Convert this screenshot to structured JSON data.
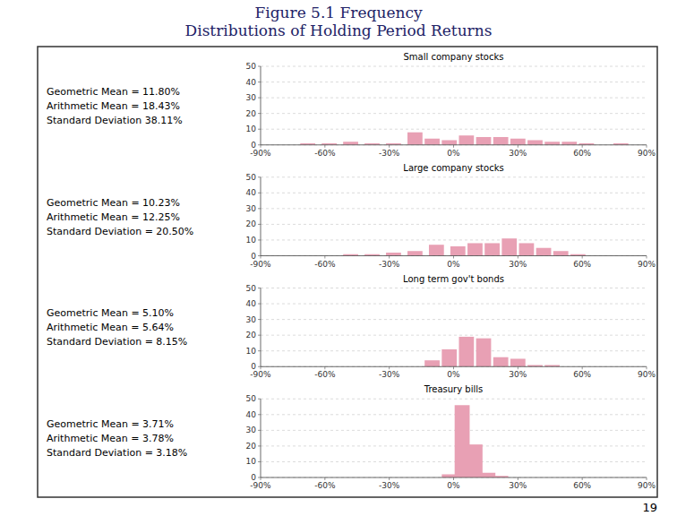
{
  "title": [
    "Figure 5.1 Frequency",
    "Distributions of Holding Period Returns"
  ],
  "annotations": [
    "19"
  ],
  "chart_data": [
    {
      "type": "bar",
      "title": "Small company stocks",
      "annotations": [
        "Geometric Mean = 11.80%",
        "Arithmetic Mean = 18.43%",
        "Standard Deviation    38.11%"
      ],
      "x": [
        -68,
        -58,
        -48,
        -38,
        -28,
        -18,
        -10,
        -2,
        6,
        14,
        22,
        30,
        38,
        46,
        54,
        62,
        78
      ],
      "values": [
        1,
        1,
        2,
        1,
        1,
        8,
        4,
        3,
        6,
        5,
        5,
        4,
        3,
        2,
        2,
        1,
        1
      ],
      "color": "#e8a0b4",
      "xlim": [
        -90,
        90
      ],
      "xticks": [
        {
          "value": -90,
          "label": "-90%"
        },
        {
          "value": -60,
          "label": "-60%"
        },
        {
          "value": -30,
          "label": "-30%"
        },
        {
          "value": 0,
          "label": "0%"
        },
        {
          "value": 30,
          "label": "30%"
        },
        {
          "value": 60,
          "label": "60%"
        },
        {
          "value": 90,
          "label": "90%"
        }
      ],
      "ylim": [
        0,
        50
      ],
      "yticks": [
        0,
        10,
        20,
        30,
        40,
        50
      ],
      "grid": true
    },
    {
      "type": "bar",
      "title": "Large company stocks",
      "annotations": [
        "Geometric Mean = 10.23%",
        "Arithmetic Mean = 12.25%",
        "Standard Deviation = 20.50%"
      ],
      "x": [
        -48,
        -38,
        -28,
        -18,
        -8,
        2,
        10,
        18,
        26,
        34,
        42,
        50,
        58
      ],
      "values": [
        1,
        1,
        2,
        3,
        7,
        6,
        8,
        8,
        11,
        8,
        5,
        3,
        1
      ],
      "color": "#e8a0b4",
      "xlim": [
        -90,
        90
      ],
      "xticks": [
        {
          "value": -90,
          "label": "-90%"
        },
        {
          "value": -60,
          "label": "-60%"
        },
        {
          "value": -30,
          "label": "-30%"
        },
        {
          "value": 0,
          "label": "0%"
        },
        {
          "value": 30,
          "label": "30%"
        },
        {
          "value": 60,
          "label": "60%"
        },
        {
          "value": 90,
          "label": "90%"
        }
      ],
      "ylim": [
        0,
        50
      ],
      "yticks": [
        0,
        10,
        20,
        30,
        40,
        50
      ],
      "grid": true
    },
    {
      "type": "bar",
      "title": "Long term gov't bonds",
      "annotations": [
        "Geometric Mean = 5.10%",
        "Arithmetic Mean = 5.64%",
        "Standard Deviation = 8.15%"
      ],
      "x": [
        -10,
        -2,
        6,
        14,
        22,
        30,
        38,
        46
      ],
      "values": [
        4,
        11,
        19,
        18,
        6,
        5,
        1,
        1
      ],
      "color": "#e8a0b4",
      "xlim": [
        -90,
        90
      ],
      "xticks": [
        {
          "value": -90,
          "label": "-90%"
        },
        {
          "value": -60,
          "label": "-60%"
        },
        {
          "value": -30,
          "label": "-30%"
        },
        {
          "value": 0,
          "label": "0%"
        },
        {
          "value": 30,
          "label": "30%"
        },
        {
          "value": 60,
          "label": "60%"
        },
        {
          "value": 90,
          "label": "90%"
        }
      ],
      "ylim": [
        0,
        50
      ],
      "yticks": [
        0,
        10,
        20,
        30,
        40,
        50
      ],
      "grid": true
    },
    {
      "type": "bar",
      "title": "Treasury bills",
      "annotations": [
        "Geometric Mean = 3.71%",
        "Arithmetic Mean = 3.78%",
        "Standard Deviation = 3.18%"
      ],
      "x": [
        -2,
        4,
        10,
        16,
        22
      ],
      "values": [
        2,
        46,
        21,
        3,
        1
      ],
      "color": "#e8a0b4",
      "xlim": [
        -90,
        90
      ],
      "xticks": [
        {
          "value": -90,
          "label": "-90%"
        },
        {
          "value": -60,
          "label": "-60%"
        },
        {
          "value": -30,
          "label": "-30%"
        },
        {
          "value": 0,
          "label": "0%"
        },
        {
          "value": 30,
          "label": "30%"
        },
        {
          "value": 60,
          "label": "60%"
        },
        {
          "value": 90,
          "label": "90%"
        }
      ],
      "ylim": [
        0,
        50
      ],
      "yticks": [
        0,
        10,
        20,
        30,
        40,
        50
      ],
      "grid": true
    }
  ]
}
